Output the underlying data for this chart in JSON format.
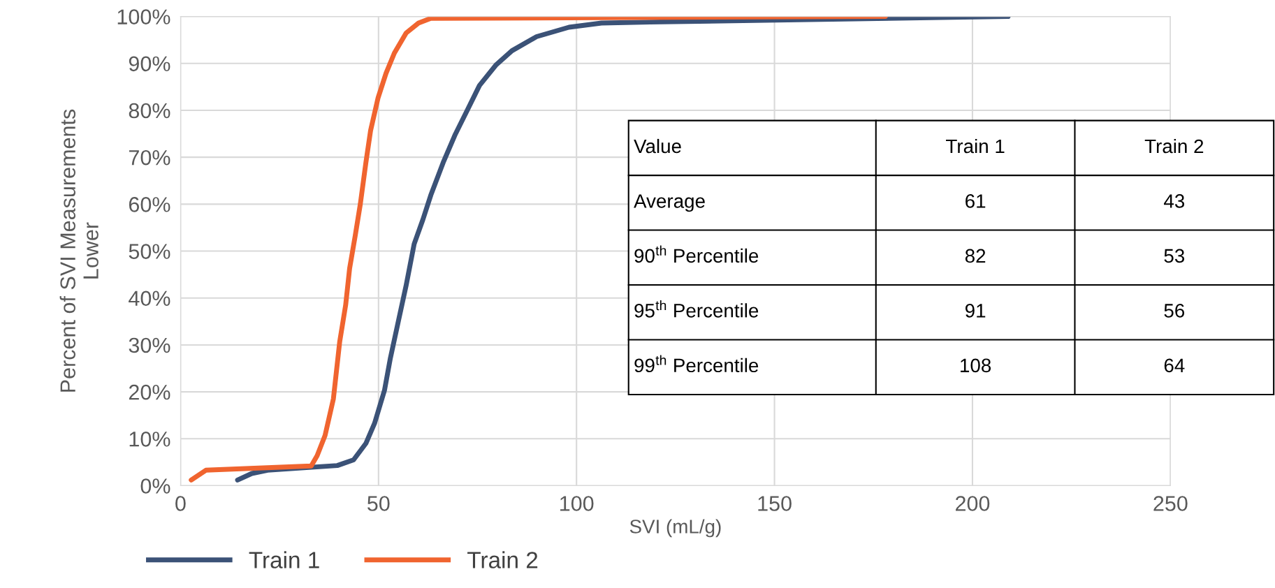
{
  "chart_data": {
    "type": "line",
    "xlabel": "SVI (mL/g)",
    "ylabel": "Percent of SVI Measurements\nLower",
    "xlim": [
      0,
      250
    ],
    "xticks": [
      0,
      50,
      100,
      150,
      200,
      250
    ],
    "ylim": [
      0,
      100
    ],
    "yticks": [
      {
        "value": 0,
        "label": "0%"
      },
      {
        "value": 10,
        "label": "10%"
      },
      {
        "value": 20,
        "label": "20%"
      },
      {
        "value": 30,
        "label": "30%"
      },
      {
        "value": 40,
        "label": "40%"
      },
      {
        "value": 50,
        "label": "50%"
      },
      {
        "value": 60,
        "label": "60%"
      },
      {
        "value": 70,
        "label": "70%"
      },
      {
        "value": 80,
        "label": "80%"
      },
      {
        "value": 90,
        "label": "90%"
      },
      {
        "value": 100,
        "label": "100%"
      }
    ],
    "grid": true,
    "legend": "bottom left",
    "marker": "none",
    "line_style": "solid",
    "series": [
      {
        "name": "Train 1",
        "color": "#3b5277",
        "x": [
          14.4,
          18,
          22,
          39.6,
          43.7,
          46.8,
          49,
          51.5,
          53,
          55,
          57,
          59,
          61.2,
          63.2,
          66.3,
          69.4,
          72.4,
          75.5,
          79.6,
          83.7,
          89.9,
          98.1,
          106.3,
          118.6,
          209
        ],
        "values": [
          1.2,
          2.6,
          3.3,
          4.3,
          5.5,
          9,
          13.3,
          20.3,
          27.2,
          35,
          42.8,
          51.5,
          56.7,
          61.9,
          68.8,
          74.9,
          80,
          85.3,
          89.6,
          92.7,
          95.7,
          97.7,
          98.6,
          98.8,
          100
        ]
      },
      {
        "name": "Train 2",
        "color": "#f0642f",
        "x": [
          2.7,
          6.4,
          33,
          34.5,
          36.5,
          38.6,
          40.2,
          41.7,
          42.7,
          44.1,
          45.4,
          46.8,
          48,
          49.9,
          51.9,
          54,
          57,
          60.1,
          63.2,
          178
        ],
        "values": [
          1.2,
          3.3,
          4.2,
          6.4,
          10.7,
          18.5,
          30.7,
          38.5,
          46.3,
          53.2,
          60,
          68.8,
          75.7,
          82.7,
          87.9,
          92.2,
          96.5,
          98.6,
          99.6,
          100
        ]
      }
    ],
    "annotations": [
      "Value",
      "Train 1",
      "Train 2",
      "Average",
      "61",
      "43",
      "90$^{th}$ Percentile",
      "82",
      "53",
      "95$^{th}$ Percentile",
      "91",
      "56",
      "99$^{th}$ Percentile",
      "108",
      "64"
    ]
  }
}
